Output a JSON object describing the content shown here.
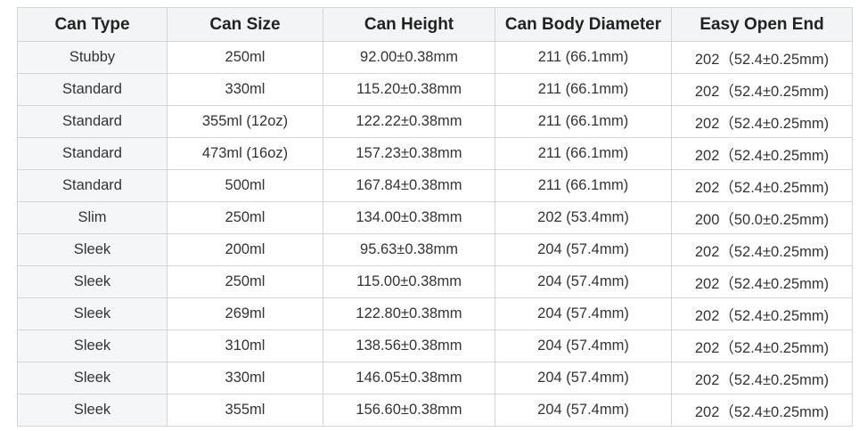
{
  "table": {
    "headers": [
      "Can Type",
      "Can Size",
      "Can Height",
      "Can Body Diameter",
      "Easy Open End"
    ],
    "rows": [
      [
        "Stubby",
        "250ml",
        "92.00±0.38mm",
        "211 (66.1mm)",
        "202（52.4±0.25mm)"
      ],
      [
        "Standard",
        "330ml",
        "115.20±0.38mm",
        "211 (66.1mm)",
        "202（52.4±0.25mm)"
      ],
      [
        "Standard",
        "355ml (12oz)",
        "122.22±0.38mm",
        "211 (66.1mm)",
        "202（52.4±0.25mm)"
      ],
      [
        "Standard",
        "473ml (16oz)",
        "157.23±0.38mm",
        "211 (66.1mm)",
        "202（52.4±0.25mm)"
      ],
      [
        "Standard",
        "500ml",
        "167.84±0.38mm",
        "211 (66.1mm)",
        "202（52.4±0.25mm)"
      ],
      [
        "Slim",
        "250ml",
        "134.00±0.38mm",
        "202 (53.4mm)",
        "200（50.0±0.25mm)"
      ],
      [
        "Sleek",
        "200ml",
        "95.63±0.38mm",
        "204 (57.4mm)",
        "202（52.4±0.25mm)"
      ],
      [
        "Sleek",
        "250ml",
        "115.00±0.38mm",
        "204 (57.4mm)",
        "202（52.4±0.25mm)"
      ],
      [
        "Sleek",
        "269ml",
        "122.80±0.38mm",
        "204 (57.4mm)",
        "202（52.4±0.25mm)"
      ],
      [
        "Sleek",
        "310ml",
        "138.56±0.38mm",
        "204 (57.4mm)",
        "202（52.4±0.25mm)"
      ],
      [
        "Sleek",
        "330ml",
        "146.05±0.38mm",
        "204 (57.4mm)",
        "202（52.4±0.25mm)"
      ],
      [
        "Sleek",
        "355ml",
        "156.60±0.38mm",
        "204 (57.4mm)",
        "202（52.4±0.25mm)"
      ]
    ]
  }
}
